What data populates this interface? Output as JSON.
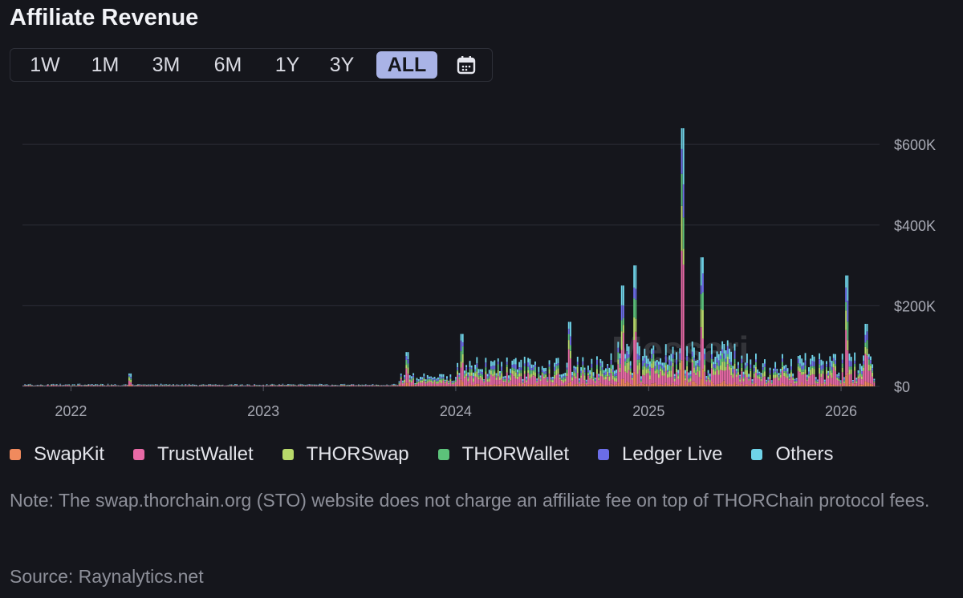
{
  "header": {
    "title": "Affiliate Revenue"
  },
  "ranges": [
    {
      "label": "1W",
      "active": false
    },
    {
      "label": "1M",
      "active": false
    },
    {
      "label": "3M",
      "active": false
    },
    {
      "label": "6M",
      "active": false
    },
    {
      "label": "1Y",
      "active": false
    },
    {
      "label": "3Y",
      "active": false
    },
    {
      "label": "ALL",
      "active": true
    }
  ],
  "calendar_icon": "calendar-icon",
  "watermark": "Messari",
  "note": "Note: The swap.thorchain.org (STO) website does not charge an affiliate fee on top of THORChain protocol fees.",
  "source": "Source: Raynalytics.net",
  "chart_data": {
    "type": "bar",
    "stacked": true,
    "title": "Affiliate Revenue",
    "xlabel": "",
    "ylabel": "",
    "x_range": [
      "2021-10-01",
      "2026-03-15"
    ],
    "ylim": [
      0,
      640000
    ],
    "x_ticks": [
      "2022",
      "2023",
      "2024",
      "2025",
      "2026"
    ],
    "y_ticks": [
      {
        "value": 0,
        "label": "$0"
      },
      {
        "value": 200000,
        "label": "$200K"
      },
      {
        "value": 400000,
        "label": "$400K"
      },
      {
        "value": 600000,
        "label": "$600K"
      }
    ],
    "grid": true,
    "legend_position": "bottom",
    "series": [
      {
        "name": "SwapKit",
        "color": "#f08a5d"
      },
      {
        "name": "TrustWallet",
        "color": "#e86aa6"
      },
      {
        "name": "THORSwap",
        "color": "#b8d96a"
      },
      {
        "name": "THORWallet",
        "color": "#5cc27a"
      },
      {
        "name": "Ledger Live",
        "color": "#6b6de8"
      },
      {
        "name": "Others",
        "color": "#6fd3e8"
      }
    ],
    "notable_spikes": [
      {
        "date": "2022-04-20",
        "total": 32000
      },
      {
        "date": "2023-10-01",
        "total": 85000
      },
      {
        "date": "2024-01-10",
        "total": 130000
      },
      {
        "date": "2024-08-01",
        "total": 160000
      },
      {
        "date": "2024-11-10",
        "total": 250000
      },
      {
        "date": "2024-12-05",
        "total": 300000
      },
      {
        "date": "2025-03-05",
        "total": 640000
      },
      {
        "date": "2025-04-10",
        "total": 320000
      },
      {
        "date": "2026-01-10",
        "total": 275000
      },
      {
        "date": "2026-02-15",
        "total": 155000
      }
    ]
  }
}
